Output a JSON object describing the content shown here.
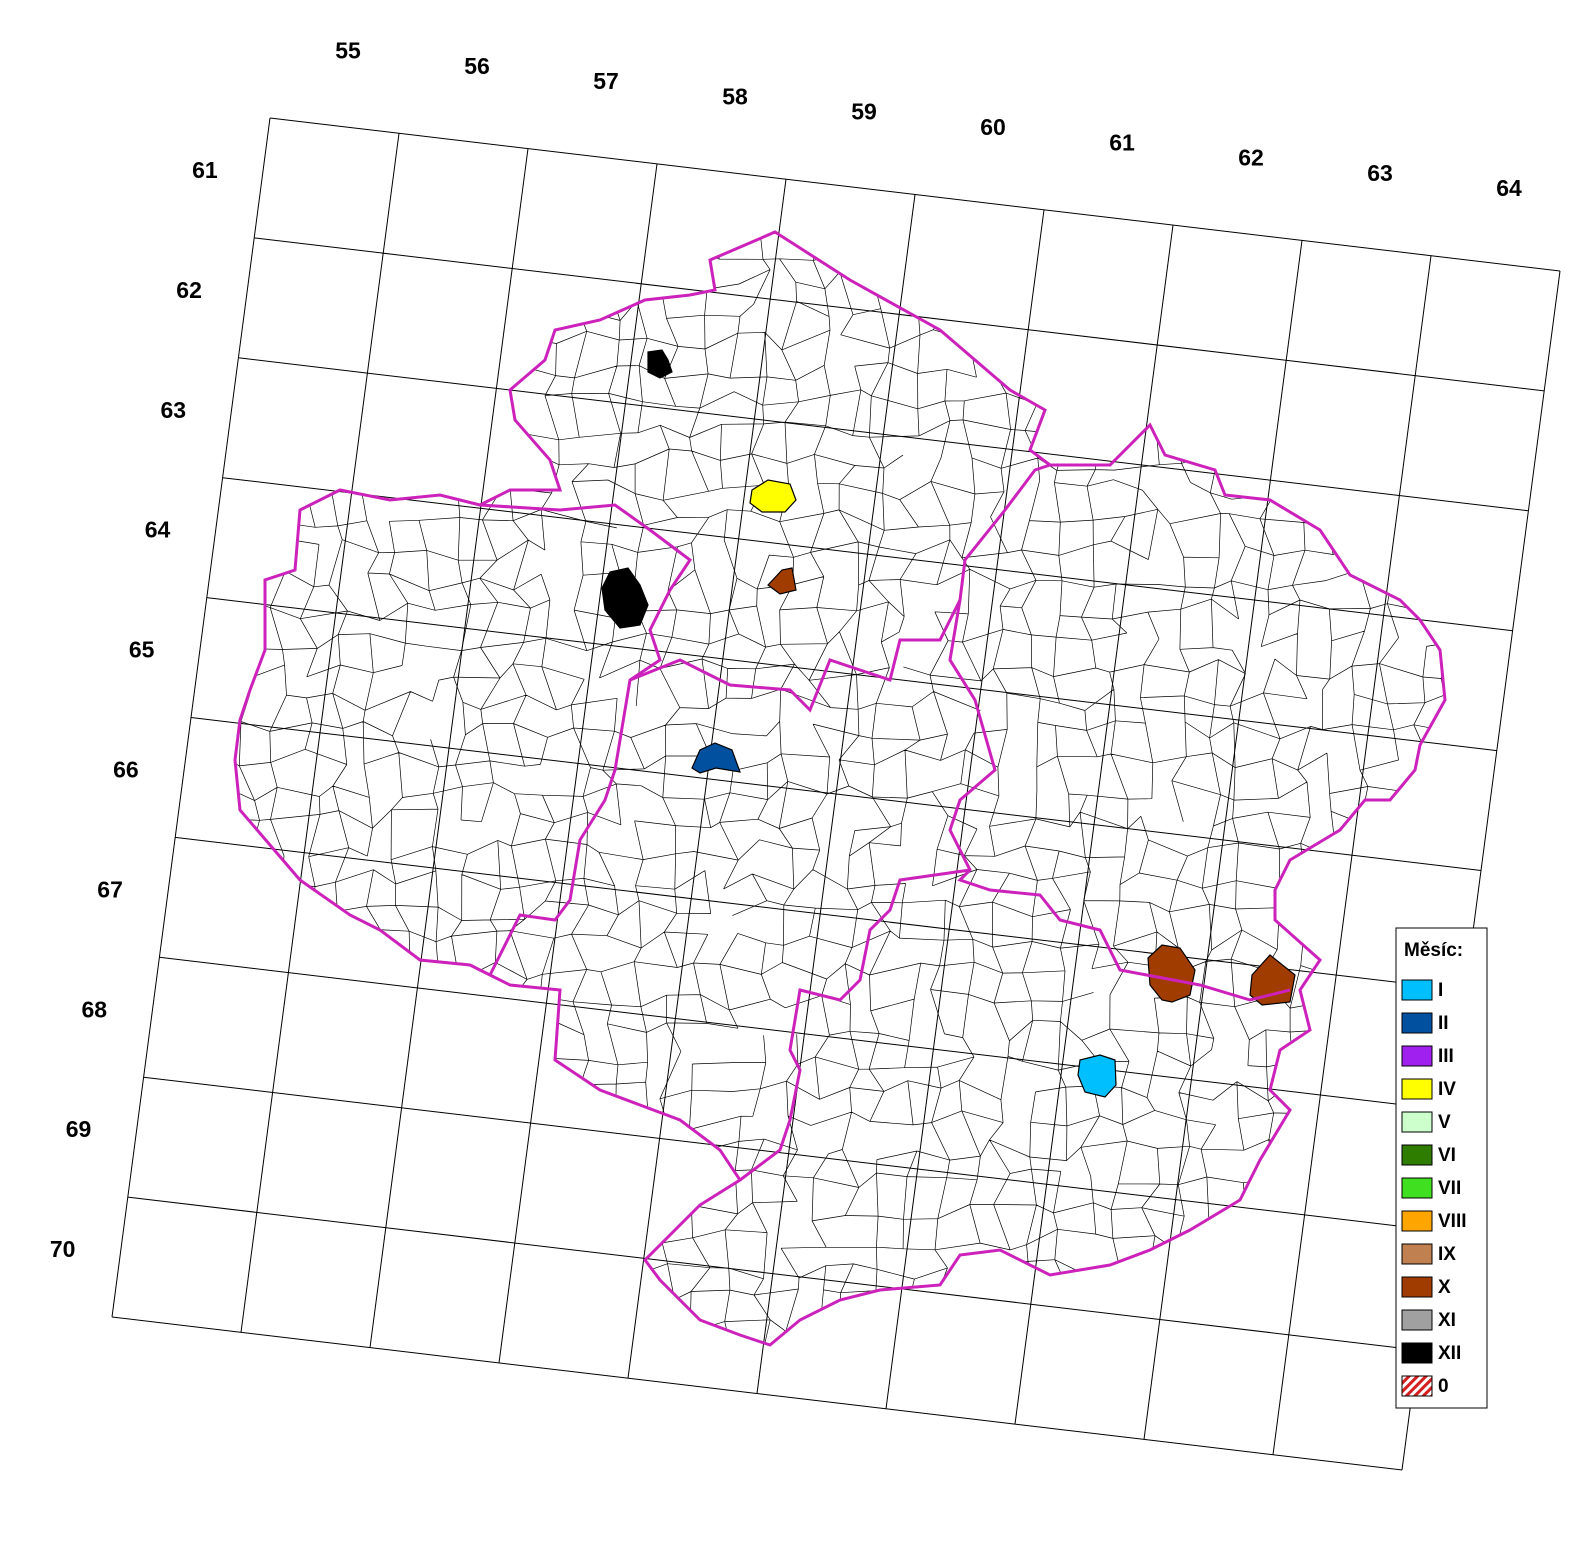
{
  "column_labels": [
    "55",
    "56",
    "57",
    "58",
    "59",
    "60",
    "61",
    "62",
    "63",
    "64"
  ],
  "row_labels": [
    "61",
    "62",
    "63",
    "64",
    "65",
    "66",
    "67",
    "68",
    "69",
    "70"
  ],
  "legend": {
    "title": "Měsíc:",
    "items": [
      {
        "label": "I",
        "color": "#00bfff"
      },
      {
        "label": "II",
        "color": "#0050a0"
      },
      {
        "label": "III",
        "color": "#a020f0"
      },
      {
        "label": "IV",
        "color": "#ffff00"
      },
      {
        "label": "V",
        "color": "#ccffcc"
      },
      {
        "label": "VI",
        "color": "#2e7d00"
      },
      {
        "label": "VII",
        "color": "#40e020"
      },
      {
        "label": "VIII",
        "color": "#ffa500"
      },
      {
        "label": "IX",
        "color": "#c08050"
      },
      {
        "label": "X",
        "color": "#a03c00"
      },
      {
        "label": "XI",
        "color": "#a0a0a0"
      },
      {
        "label": "XII",
        "color": "#000000"
      },
      {
        "label": "0",
        "color": "#d42020",
        "pattern": "hatch"
      }
    ]
  }
}
